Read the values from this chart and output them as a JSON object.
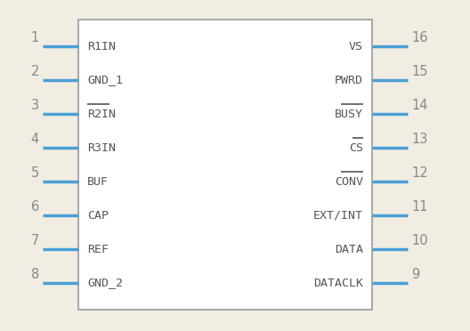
{
  "bg_color": "#f2ede3",
  "box_color": "#aaaaaa",
  "pin_color": "#4a9fd4",
  "text_color": "#555555",
  "num_color": "#888888",
  "left_pins": [
    {
      "num": 1,
      "label": "R1IN",
      "overline": false
    },
    {
      "num": 2,
      "label": "GND_1",
      "overline": false
    },
    {
      "num": 3,
      "label": "R2IN",
      "overline": true
    },
    {
      "num": 4,
      "label": "R3IN",
      "overline": false
    },
    {
      "num": 5,
      "label": "BUF",
      "overline": false
    },
    {
      "num": 6,
      "label": "CAP",
      "overline": false
    },
    {
      "num": 7,
      "label": "REF",
      "overline": false
    },
    {
      "num": 8,
      "label": "GND_2",
      "overline": false
    }
  ],
  "right_pins": [
    {
      "num": 16,
      "label": "VS",
      "overline": false
    },
    {
      "num": 15,
      "label": "PWRD",
      "overline": false
    },
    {
      "num": 14,
      "label": "BUSY",
      "overline": true
    },
    {
      "num": 13,
      "label": "CS",
      "overline": true
    },
    {
      "num": 12,
      "label": "CONV",
      "overline": true
    },
    {
      "num": 11,
      "label": "EXT/INT",
      "overline": false
    },
    {
      "num": 10,
      "label": "DATA",
      "overline": false
    },
    {
      "num": 9,
      "label": "DATACLK",
      "overline": false
    }
  ]
}
